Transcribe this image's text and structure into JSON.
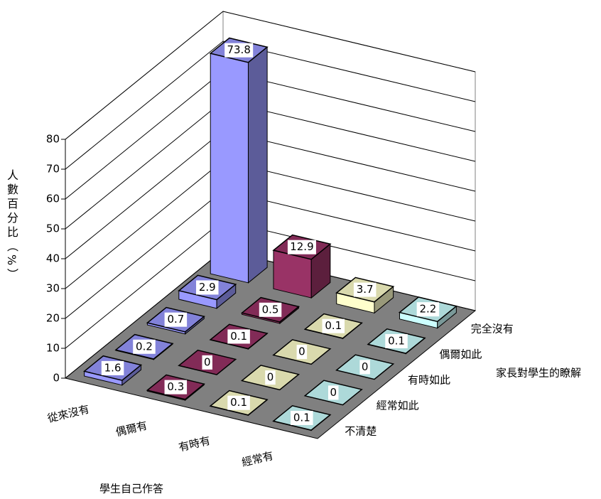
{
  "chart_data": {
    "type": "bar3d",
    "y_label": "人數百分比（%）",
    "x_label": "學生自己作答",
    "depth_label": "家長對學生的瞭解",
    "depth_categories": [
      "完全沒有",
      "偶爾如此",
      "有時如此",
      "經常如此",
      "不清楚"
    ],
    "series": [
      {
        "name": "從來沒有",
        "color": "#9999ff",
        "values": [
          73.8,
          2.9,
          0.7,
          0.2,
          1.6
        ]
      },
      {
        "name": "偶爾有",
        "color": "#993366",
        "values": [
          12.9,
          0.5,
          0.1,
          0,
          0.3
        ]
      },
      {
        "name": "有時有",
        "color": "#ffffcc",
        "values": [
          3.7,
          0.1,
          0,
          0,
          0.1
        ]
      },
      {
        "name": "經常有",
        "color": "#ccffff",
        "values": [
          2.2,
          0.1,
          0,
          0,
          0.1
        ]
      }
    ],
    "ylim": [
      0,
      80
    ],
    "yticks": [
      0,
      10,
      20,
      30,
      40,
      50,
      60,
      70,
      80
    ],
    "grid": true
  }
}
